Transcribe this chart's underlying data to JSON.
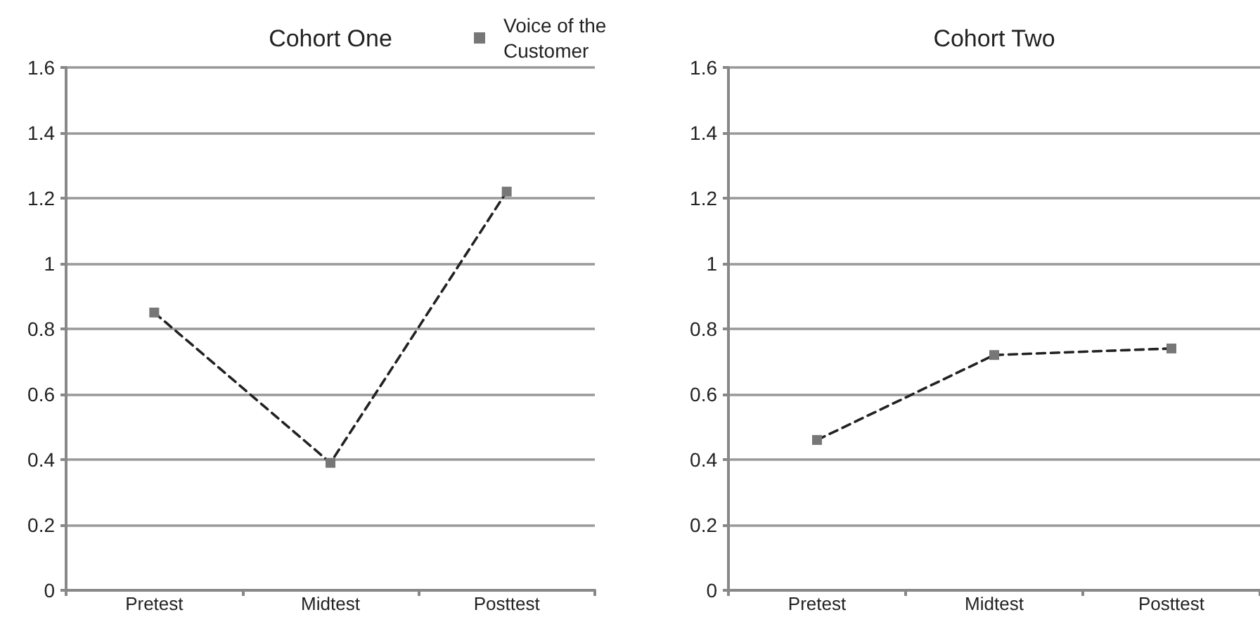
{
  "chart_data": [
    {
      "type": "line",
      "title": "Cohort One",
      "categories": [
        "Pretest",
        "Midtest",
        "Posttest"
      ],
      "series": [
        {
          "name": "Voice of the Customer",
          "color": "#777777",
          "values": [
            0.85,
            0.39,
            1.22
          ]
        }
      ],
      "ylim": [
        0,
        1.6
      ],
      "yticks": [
        0,
        0.2,
        0.4,
        0.6,
        0.8,
        1,
        1.2,
        1.4,
        1.6
      ],
      "grid": "y",
      "legend": "top right",
      "marker": "square",
      "line_style": "dashed"
    },
    {
      "type": "line",
      "title": "Cohort Two",
      "categories": [
        "Pretest",
        "Midtest",
        "Posttest"
      ],
      "series": [
        {
          "color": "#777777",
          "values": [
            0.46,
            0.72,
            0.74
          ]
        }
      ],
      "ylim": [
        0,
        1.6
      ],
      "yticks": [
        0,
        0.2,
        0.4,
        0.6,
        0.8,
        1,
        1.2,
        1.4,
        1.6
      ],
      "grid": "y",
      "marker": "square",
      "line_style": "dashed"
    }
  ]
}
